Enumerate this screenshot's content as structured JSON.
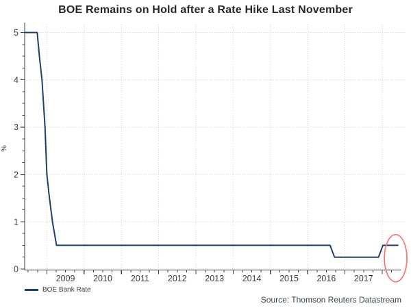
{
  "header": {
    "title": "BOE Remains on Hold after a Rate Hike Last November"
  },
  "legend": {
    "items": [
      {
        "label": "BOE Bank Rate",
        "color": "#1c3f6e"
      }
    ]
  },
  "footer": {
    "source": "Source: Thomson Reuters Datastream"
  },
  "colors": {
    "line": "#1c3f6e",
    "grid": "#cbcbcb",
    "axis": "#3f3f3f",
    "tick_label": "#3c3c3c",
    "title": "#262626",
    "source_text": "#37474f",
    "annotation": "#ee7e76"
  },
  "chart_data": {
    "type": "line",
    "title": "BOE Remains on Hold after a Rate Hike Last November",
    "xlabel": "",
    "ylabel": "%",
    "x_unit": "year",
    "xlim": [
      2008.41,
      2018.42
    ],
    "ylim": [
      0,
      5
    ],
    "grid": true,
    "legend_position": "bottom-left",
    "y_major_ticks": [
      0,
      1,
      2,
      3,
      4,
      5
    ],
    "y_minor_step": 0.25,
    "x_major_ticks": [
      2009,
      2010,
      2011,
      2012,
      2013,
      2014,
      2015,
      2016,
      2017,
      2018
    ],
    "x_minor_step": 0.25,
    "x_tick_labels": [
      "2009",
      "2010",
      "2011",
      "2012",
      "2013",
      "2014",
      "2015",
      "2016",
      "2017"
    ],
    "series": [
      {
        "name": "BOE Bank Rate",
        "color": "#1c3f6e",
        "points": [
          [
            2008.41,
            5.0
          ],
          [
            2008.74,
            5.0
          ],
          [
            2008.8,
            4.5
          ],
          [
            2008.87,
            4.0
          ],
          [
            2008.95,
            3.0
          ],
          [
            2009.0,
            2.0
          ],
          [
            2009.07,
            1.5
          ],
          [
            2009.15,
            1.0
          ],
          [
            2009.26,
            0.5
          ],
          [
            2016.6,
            0.5
          ],
          [
            2016.72,
            0.25
          ],
          [
            2017.9,
            0.25
          ],
          [
            2018.02,
            0.5
          ],
          [
            2018.42,
            0.5
          ]
        ]
      }
    ],
    "annotations": [
      {
        "shape": "ellipse",
        "color": "#ee7e76",
        "x": 2018.36,
        "y": 0.25
      }
    ]
  }
}
